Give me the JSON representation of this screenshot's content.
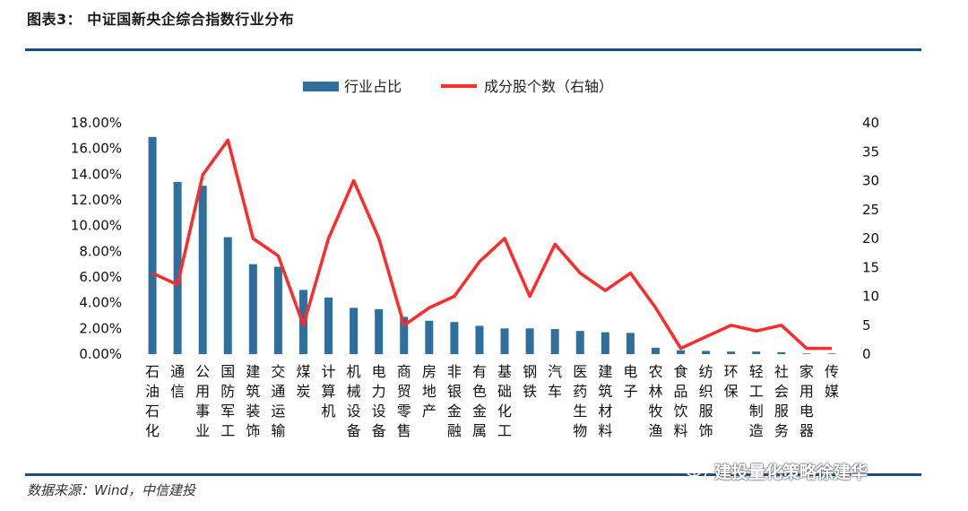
{
  "figure": {
    "title": "图表3：  中证国新央企综合指数行业分布",
    "source": "数据来源：Wind，中信建投",
    "watermark": "建投量化策略徐建华"
  },
  "colors": {
    "bar": "#2e6f9e",
    "line": "#ff2a2a",
    "rule": "#1f4e79"
  },
  "chart_data": {
    "type": "bar",
    "title": "中证国新央企综合指数行业分布",
    "categories": [
      "石油石化",
      "通信",
      "公用事业",
      "国防军工",
      "建筑装饰",
      "交通运输",
      "煤炭",
      "计算机",
      "机械设备",
      "电力设备",
      "商贸零售",
      "房地产",
      "非银金融",
      "有色金属",
      "基础化工",
      "钢铁",
      "汽车",
      "医药生物",
      "建筑材料",
      "电子",
      "农林牧渔",
      "食品饮料",
      "纺织服饰",
      "环保",
      "轻工制造",
      "社会服务",
      "家用电器",
      "传媒"
    ],
    "series": [
      {
        "name": "行业占比",
        "type": "bar",
        "axis": "left",
        "values": [
          16.9,
          13.4,
          13.1,
          9.1,
          7.0,
          6.8,
          5.0,
          4.4,
          3.6,
          3.5,
          2.9,
          2.6,
          2.5,
          2.2,
          2.0,
          2.0,
          1.95,
          1.8,
          1.7,
          1.65,
          0.5,
          0.3,
          0.25,
          0.2,
          0.2,
          0.15,
          0.05,
          0.05
        ]
      },
      {
        "name": "成分股个数（右轴）",
        "type": "line",
        "axis": "right",
        "values": [
          14,
          12,
          31,
          37,
          20,
          17,
          5,
          20,
          30,
          20,
          5,
          8,
          10,
          16,
          20,
          10,
          19,
          14,
          11,
          14,
          8,
          1,
          3,
          5,
          4,
          5,
          1,
          1
        ]
      }
    ],
    "ylim_left": [
      0,
      18
    ],
    "yticks_left": [
      "0.00%",
      "2.00%",
      "4.00%",
      "6.00%",
      "8.00%",
      "10.00%",
      "12.00%",
      "14.00%",
      "16.00%",
      "18.00%"
    ],
    "ylim_right": [
      0,
      40
    ],
    "yticks_right": [
      "0",
      "5",
      "10",
      "15",
      "20",
      "25",
      "30",
      "35",
      "40"
    ],
    "legend": [
      "行业占比",
      "成分股个数（右轴）"
    ],
    "legend_position": "top-center",
    "grid": false
  }
}
